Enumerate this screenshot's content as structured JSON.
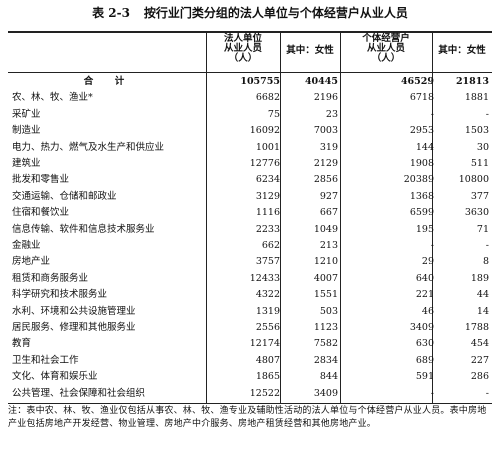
{
  "title": {
    "number": "表 2-3",
    "text": "按行业门类分组的法人单位与个体经营户从业人员"
  },
  "header": {
    "legal_entity": [
      "法人单位",
      "从业人员",
      "（人）"
    ],
    "legal_female": "其中：女性",
    "individual": [
      "个体经营户",
      "从业人员",
      "（人）"
    ],
    "individual_female": "其中：女性"
  },
  "rows": [
    {
      "name": "合　计",
      "v1": "105755",
      "v2": "40445",
      "v3": "46529",
      "v4": "21813"
    },
    {
      "name": "农、林、牧、渔业*",
      "v1": "6682",
      "v2": "2196",
      "v3": "6718",
      "v4": "1881"
    },
    {
      "name": "采矿业",
      "v1": "75",
      "v2": "23",
      "v3": "-",
      "v4": "-"
    },
    {
      "name": "制造业",
      "v1": "16092",
      "v2": "7003",
      "v3": "2953",
      "v4": "1503"
    },
    {
      "name": "电力、热力、燃气及水生产和供应业",
      "v1": "1001",
      "v2": "319",
      "v3": "144",
      "v4": "30"
    },
    {
      "name": "建筑业",
      "v1": "12776",
      "v2": "2129",
      "v3": "1908",
      "v4": "511"
    },
    {
      "name": "批发和零售业",
      "v1": "6234",
      "v2": "2856",
      "v3": "20389",
      "v4": "10800"
    },
    {
      "name": "交通运输、仓储和邮政业",
      "v1": "3129",
      "v2": "927",
      "v3": "1368",
      "v4": "377"
    },
    {
      "name": "住宿和餐饮业",
      "v1": "1116",
      "v2": "667",
      "v3": "6599",
      "v4": "3630"
    },
    {
      "name": "信息传输、软件和信息技术服务业",
      "v1": "2233",
      "v2": "1049",
      "v3": "195",
      "v4": "71"
    },
    {
      "name": "金融业",
      "v1": "662",
      "v2": "213",
      "v3": "-",
      "v4": "-"
    },
    {
      "name": "房地产业",
      "v1": "3757",
      "v2": "1210",
      "v3": "29",
      "v4": "8"
    },
    {
      "name": "租赁和商务服务业",
      "v1": "12433",
      "v2": "4007",
      "v3": "640",
      "v4": "189"
    },
    {
      "name": "科学研究和技术服务业",
      "v1": "4322",
      "v2": "1551",
      "v3": "221",
      "v4": "44"
    },
    {
      "name": "水利、环境和公共设施管理业",
      "v1": "1319",
      "v2": "503",
      "v3": "46",
      "v4": "14"
    },
    {
      "name": "居民服务、修理和其他服务业",
      "v1": "2556",
      "v2": "1123",
      "v3": "3409",
      "v4": "1788"
    },
    {
      "name": "教育",
      "v1": "12174",
      "v2": "7582",
      "v3": "630",
      "v4": "454"
    },
    {
      "name": "卫生和社会工作",
      "v1": "4807",
      "v2": "2834",
      "v3": "689",
      "v4": "227"
    },
    {
      "name": "文化、体育和娱乐业",
      "v1": "1865",
      "v2": "844",
      "v3": "591",
      "v4": "286"
    },
    {
      "name": "公共管理、社会保障和社会组织",
      "v1": "12522",
      "v2": "3409",
      "v3": "-",
      "v4": "-"
    }
  ],
  "note": "注：表中农、林、牧、渔业仅包括从事农、林、牧、渔专业及辅助性活动的法人单位与个体经营户从业人员。表中房地产业包括房地产开发经营、物业管理、房地产中介服务、房地产租赁经营和其他房地产业。"
}
